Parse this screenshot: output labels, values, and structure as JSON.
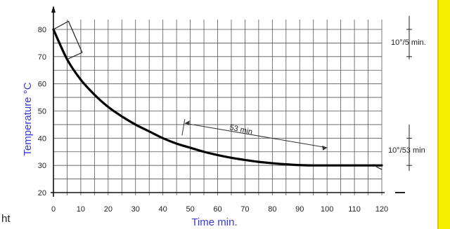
{
  "chart_data": {
    "type": "line",
    "xlabel": "Time min.",
    "ylabel": "Temperature °C",
    "xlim": [
      0,
      120
    ],
    "ylim": [
      20,
      80
    ],
    "grid": true,
    "x_ticks": [
      "0",
      "10",
      "20",
      "30",
      "40",
      "50",
      "60",
      "70",
      "80",
      "90",
      "100",
      "110",
      "120"
    ],
    "y_ticks": [
      "20",
      "30",
      "40",
      "50",
      "60",
      "70",
      "80"
    ],
    "series": [
      {
        "x": [
          0,
          5,
          10,
          15,
          20,
          25,
          30,
          35,
          40,
          45,
          50,
          55,
          60,
          65,
          70,
          75,
          80,
          85,
          90,
          95,
          100,
          105,
          110,
          115,
          120
        ],
        "y": [
          80,
          69,
          61.5,
          56,
          51.5,
          48,
          45,
          42.5,
          40,
          38,
          36.5,
          35,
          33.8,
          32.8,
          32,
          31.3,
          30.8,
          30.4,
          30.1,
          30,
          30,
          30,
          30,
          30,
          30
        ]
      }
    ],
    "annotations": {
      "top_interval": "10°/5 min.",
      "mid_interval": "53 min",
      "lower_interval": "10°/53 min"
    }
  },
  "page": {
    "stray_text": "ht",
    "strip_color": "#f7ef00"
  }
}
